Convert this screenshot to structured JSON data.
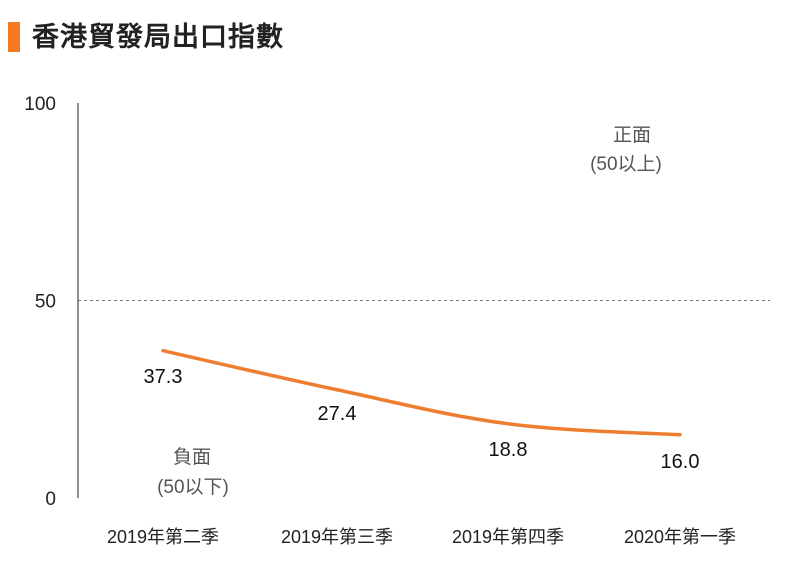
{
  "title": "香港貿發局出口指數",
  "colors": {
    "accent": "#F47920",
    "line": "#ED7D31",
    "axis": "#444444",
    "threshold": "#777777"
  },
  "chart_data": {
    "type": "line",
    "title": "香港貿發局出口指數",
    "categories": [
      "2019年第二季",
      "2019年第三季",
      "2019年第四季",
      "2020年第一季"
    ],
    "series": [
      {
        "name": "出口指數",
        "values": [
          37.3,
          27.4,
          18.8,
          16.0
        ]
      }
    ],
    "data_labels": [
      "37.3",
      "27.4",
      "18.8",
      "16.0"
    ],
    "yticks": [
      0,
      50,
      100
    ],
    "ytick_labels": [
      "0",
      "50",
      "100"
    ],
    "ylim": [
      0,
      100
    ],
    "threshold": 50,
    "annotations": {
      "positive": [
        "正面",
        "(50以上)"
      ],
      "negative": [
        "負面",
        "(50以下)"
      ]
    }
  }
}
